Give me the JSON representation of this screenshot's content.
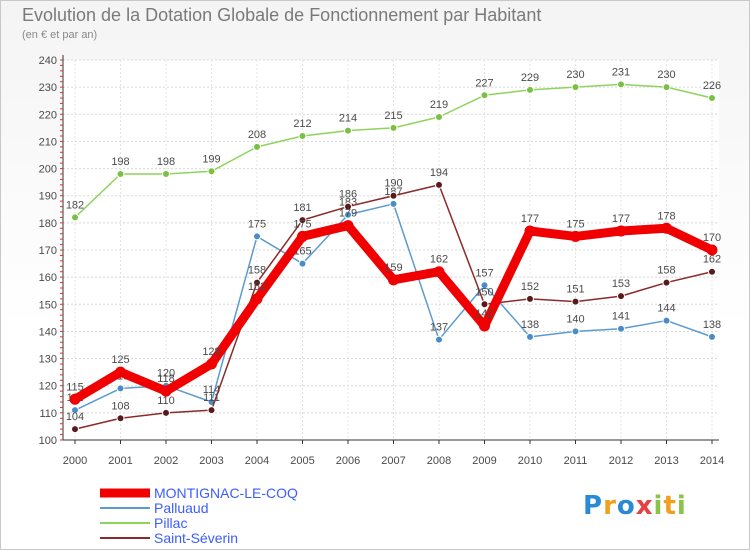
{
  "chart_data": {
    "type": "line",
    "title": "Evolution de la Dotation Globale de Fonctionnement par Habitant",
    "subtitle": "(en € et par an)",
    "x": [
      "2000",
      "2001",
      "2002",
      "2003",
      "2004",
      "2005",
      "2006",
      "2007",
      "2008",
      "2009",
      "2010",
      "2011",
      "2012",
      "2013",
      "2014"
    ],
    "ylim": [
      100,
      240
    ],
    "yticks": [
      100,
      110,
      120,
      130,
      140,
      150,
      160,
      170,
      180,
      190,
      200,
      210,
      220,
      230,
      240
    ],
    "series": [
      {
        "name": "Pillac",
        "color": "#8fd45a",
        "marker": "#7ac143",
        "values": [
          182,
          198,
          198,
          199,
          208,
          212,
          214,
          215,
          219,
          227,
          229,
          230,
          231,
          230,
          226
        ]
      },
      {
        "name": "Palluaud",
        "color": "#5b9bd0",
        "marker": "#4a8cc8",
        "values": [
          111,
          119,
          120,
          114,
          175,
          165,
          183,
          187,
          137,
          157,
          138,
          140,
          141,
          144,
          138
        ]
      },
      {
        "name": "Saint-Séverin",
        "color": "#8b2a2a",
        "marker": "#5a1a1a",
        "values": [
          104,
          108,
          110,
          111,
          158,
          181,
          186,
          190,
          194,
          150,
          152,
          151,
          153,
          158,
          162
        ]
      },
      {
        "name": "MONTIGNAC-LE-COQ",
        "color": "#f00000",
        "marker": "#f00000",
        "values": [
          115,
          125,
          118,
          128,
          152,
          175,
          179,
          159,
          162,
          142,
          177,
          175,
          177,
          178,
          170
        ]
      }
    ],
    "legend": [
      "MONTIGNAC-LE-COQ",
      "Palluaud",
      "Pillac",
      "Saint-Séverin"
    ],
    "legend_colors": [
      "#f00000",
      "#5b9bd0",
      "#8fd45a",
      "#8b2a2a"
    ],
    "legend_text_colors": [
      "#3c5cff",
      "#3c5cff",
      "#3c5cff",
      "#3c5cff"
    ]
  },
  "logo": {
    "letters": [
      "P",
      "r",
      "o",
      "x",
      "i",
      "t",
      "i"
    ],
    "colors": [
      "#2b8ad6",
      "#f0a020",
      "#2b8ad6",
      "#e84040",
      "#8bc34a",
      "#f0a020",
      "#8bc34a"
    ]
  }
}
